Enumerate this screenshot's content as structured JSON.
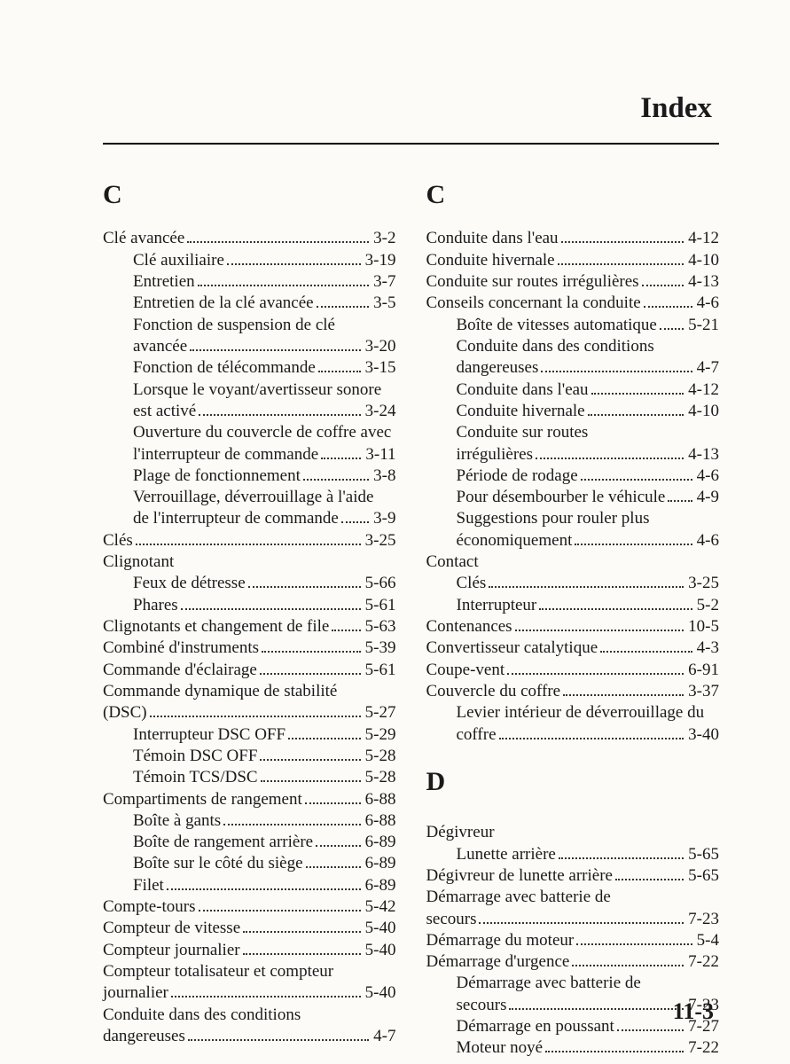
{
  "header": "Index",
  "footer": "11-3",
  "left": {
    "letter": "C",
    "entries": [
      {
        "t": "Clé avancée",
        "p": "3-2",
        "sub": false,
        "wrap": null
      },
      {
        "t": "Clé auxiliaire",
        "p": "3-19",
        "sub": true,
        "wrap": null
      },
      {
        "t": "Entretien",
        "p": "3-7",
        "sub": true,
        "wrap": null
      },
      {
        "t": "Entretien de la clé avancée",
        "p": "3-5",
        "sub": true,
        "wrap": null
      },
      {
        "t": "Fonction de suspension de clé",
        "p": null,
        "sub": true,
        "wrap": {
          "t": "avancée",
          "p": "3-20"
        }
      },
      {
        "t": "Fonction de télécommande",
        "p": "3-15",
        "sub": true,
        "wrap": null
      },
      {
        "t": "Lorsque le voyant/avertisseur sonore",
        "p": null,
        "sub": true,
        "wrap": {
          "t": "est activé",
          "p": "3-24"
        }
      },
      {
        "t": "Ouverture du couvercle de coffre avec",
        "p": null,
        "sub": true,
        "wrap": {
          "t": "l'interrupteur de commande",
          "p": "3-11"
        }
      },
      {
        "t": "Plage de fonctionnement",
        "p": "3-8",
        "sub": true,
        "wrap": null
      },
      {
        "t": "Verrouillage, déverrouillage à l'aide",
        "p": null,
        "sub": true,
        "wrap": {
          "t": "de l'interrupteur de commande",
          "p": "3-9"
        }
      },
      {
        "t": "Clés",
        "p": "3-25",
        "sub": false,
        "wrap": null
      },
      {
        "t": "Clignotant",
        "p": null,
        "sub": false,
        "wrap": null,
        "noPage": true
      },
      {
        "t": "Feux de détresse",
        "p": "5-66",
        "sub": true,
        "wrap": null
      },
      {
        "t": "Phares",
        "p": "5-61",
        "sub": true,
        "wrap": null
      },
      {
        "t": "Clignotants et changement de file",
        "p": "5-63",
        "sub": false,
        "wrap": null
      },
      {
        "t": "Combiné d'instruments",
        "p": "5-39",
        "sub": false,
        "wrap": null
      },
      {
        "t": "Commande d'éclairage",
        "p": "5-61",
        "sub": false,
        "wrap": null
      },
      {
        "t": "Commande dynamique de stabilité",
        "p": null,
        "sub": false,
        "wrap": {
          "t": "(DSC)",
          "p": "5-27",
          "noIndent": true
        }
      },
      {
        "t": "Interrupteur DSC OFF",
        "p": "5-29",
        "sub": true,
        "wrap": null
      },
      {
        "t": "Témoin DSC OFF",
        "p": "5-28",
        "sub": true,
        "wrap": null
      },
      {
        "t": "Témoin TCS/DSC",
        "p": "5-28",
        "sub": true,
        "wrap": null
      },
      {
        "t": "Compartiments de rangement",
        "p": "6-88",
        "sub": false,
        "wrap": null
      },
      {
        "t": "Boîte à gants",
        "p": "6-88",
        "sub": true,
        "wrap": null
      },
      {
        "t": "Boîte de rangement arrière",
        "p": "6-89",
        "sub": true,
        "wrap": null
      },
      {
        "t": "Boîte sur le côté du siège",
        "p": "6-89",
        "sub": true,
        "wrap": null
      },
      {
        "t": "Filet",
        "p": "6-89",
        "sub": true,
        "wrap": null
      },
      {
        "t": "Compte-tours",
        "p": "5-42",
        "sub": false,
        "wrap": null
      },
      {
        "t": "Compteur de vitesse",
        "p": "5-40",
        "sub": false,
        "wrap": null
      },
      {
        "t": "Compteur journalier",
        "p": "5-40",
        "sub": false,
        "wrap": null
      },
      {
        "t": "Compteur totalisateur et compteur",
        "p": null,
        "sub": false,
        "wrap": {
          "t": "journalier",
          "p": "5-40",
          "noIndent": true
        }
      },
      {
        "t": "Conduite dans des conditions",
        "p": null,
        "sub": false,
        "wrap": {
          "t": "dangereuses",
          "p": "4-7",
          "noIndent": true
        }
      }
    ]
  },
  "right": {
    "sections": [
      {
        "letter": "C",
        "entries": [
          {
            "t": "Conduite dans l'eau",
            "p": "4-12",
            "sub": false
          },
          {
            "t": "Conduite hivernale",
            "p": "4-10",
            "sub": false
          },
          {
            "t": "Conduite sur routes irrégulières",
            "p": "4-13",
            "sub": false
          },
          {
            "t": "Conseils concernant la conduite",
            "p": "4-6",
            "sub": false
          },
          {
            "t": "Boîte de vitesses automatique",
            "p": "5-21",
            "sub": true
          },
          {
            "t": "Conduite dans des conditions",
            "p": null,
            "sub": true,
            "wrap": {
              "t": "dangereuses",
              "p": "4-7"
            }
          },
          {
            "t": "Conduite dans l'eau",
            "p": "4-12",
            "sub": true
          },
          {
            "t": "Conduite hivernale",
            "p": "4-10",
            "sub": true
          },
          {
            "t": "Conduite sur routes",
            "p": null,
            "sub": true,
            "wrap": {
              "t": "irrégulières",
              "p": "4-13"
            }
          },
          {
            "t": "Période de rodage",
            "p": "4-6",
            "sub": true
          },
          {
            "t": "Pour désembourber le véhicule",
            "p": "4-9",
            "sub": true
          },
          {
            "t": "Suggestions pour rouler plus",
            "p": null,
            "sub": true,
            "wrap": {
              "t": "économiquement",
              "p": "4-6"
            }
          },
          {
            "t": "Contact",
            "p": null,
            "sub": false,
            "noPage": true
          },
          {
            "t": "Clés",
            "p": "3-25",
            "sub": true
          },
          {
            "t": "Interrupteur",
            "p": "5-2",
            "sub": true
          },
          {
            "t": "Contenances",
            "p": "10-5",
            "sub": false
          },
          {
            "t": "Convertisseur catalytique",
            "p": "4-3",
            "sub": false
          },
          {
            "t": "Coupe-vent",
            "p": "6-91",
            "sub": false
          },
          {
            "t": "Couvercle du coffre",
            "p": "3-37",
            "sub": false
          },
          {
            "t": "Levier intérieur de déverrouillage du",
            "p": null,
            "sub": true,
            "wrap": {
              "t": "coffre",
              "p": "3-40"
            }
          }
        ]
      },
      {
        "letter": "D",
        "letterClass": "d",
        "entries": [
          {
            "t": "Dégivreur",
            "p": null,
            "sub": false,
            "noPage": true
          },
          {
            "t": "Lunette arrière",
            "p": "5-65",
            "sub": true
          },
          {
            "t": "Dégivreur de lunette arrière",
            "p": "5-65",
            "sub": false
          },
          {
            "t": "Démarrage avec batterie de",
            "p": null,
            "sub": false,
            "wrap": {
              "t": "secours",
              "p": "7-23",
              "noIndent": true
            }
          },
          {
            "t": "Démarrage du moteur",
            "p": "5-4",
            "sub": false
          },
          {
            "t": "Démarrage d'urgence",
            "p": "7-22",
            "sub": false
          },
          {
            "t": "Démarrage avec batterie de",
            "p": null,
            "sub": true,
            "wrap": {
              "t": "secours",
              "p": "7-23"
            }
          },
          {
            "t": "Démarrage en poussant",
            "p": "7-27",
            "sub": true
          },
          {
            "t": "Moteur noyé",
            "p": "7-22",
            "sub": true
          }
        ]
      }
    ]
  }
}
